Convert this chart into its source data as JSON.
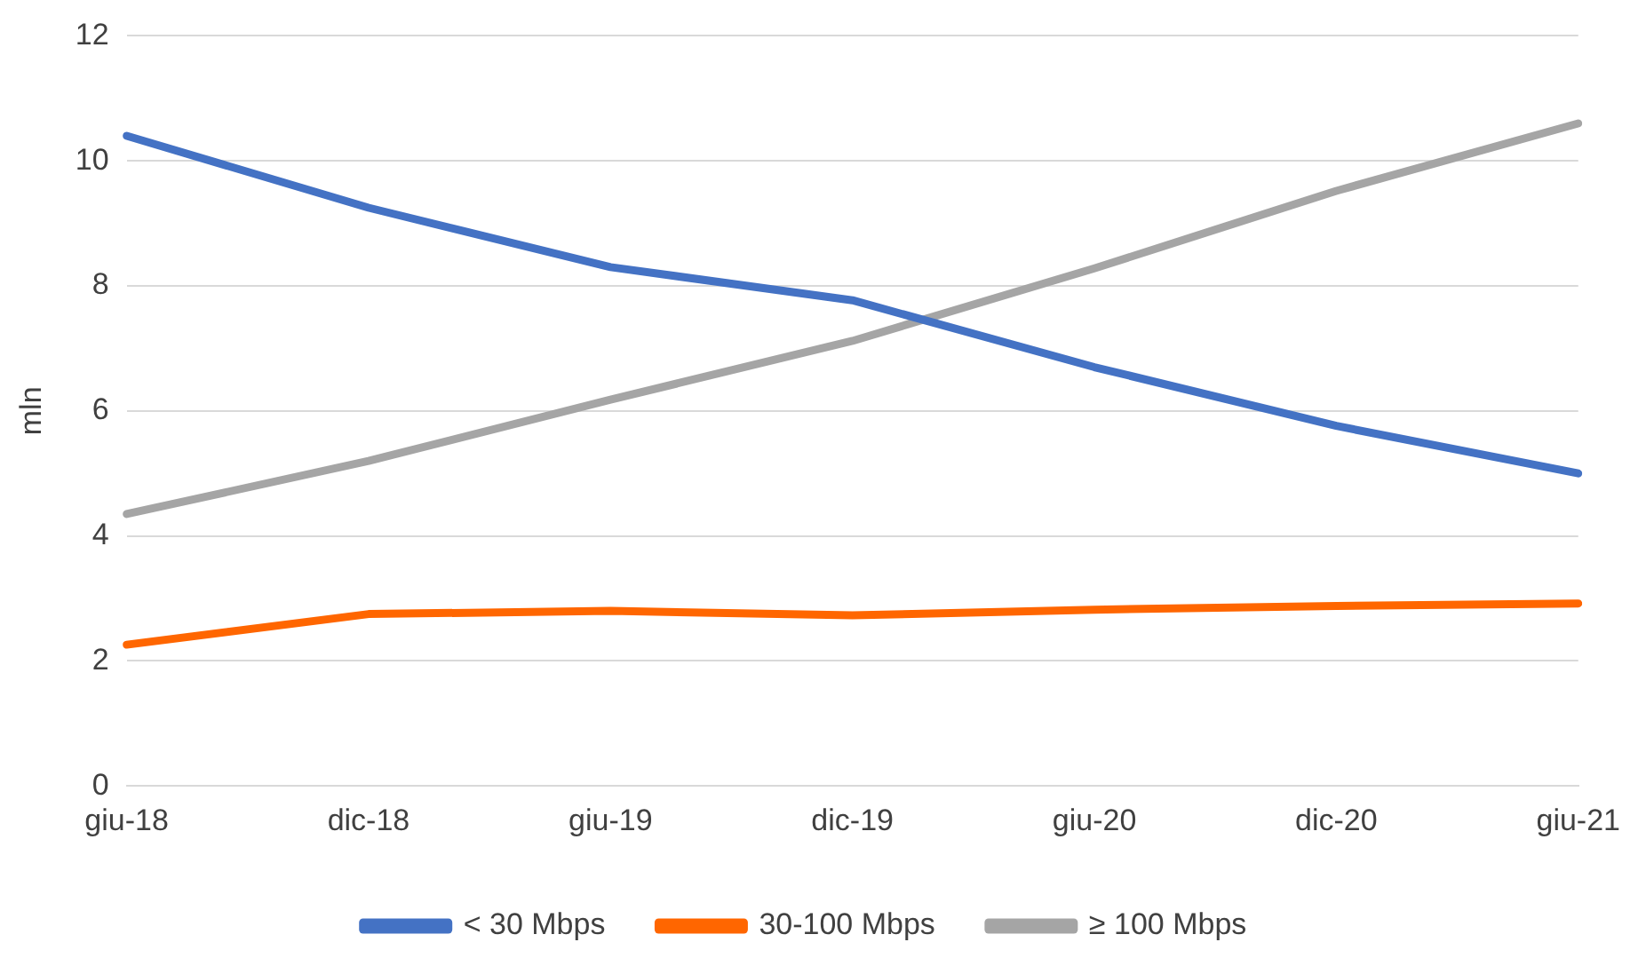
{
  "chart_data": {
    "type": "line",
    "ylabel": "mln",
    "categories": [
      "giu-18",
      "dic-18",
      "giu-19",
      "dic-19",
      "giu-20",
      "dic-20",
      "giu-21"
    ],
    "series": [
      {
        "name": "< 30 Mbps",
        "color": "#4472c4",
        "values": [
          10.4,
          9.25,
          8.3,
          7.77,
          6.7,
          5.76,
          5.0
        ]
      },
      {
        "name": "30-100 Mbps",
        "color": "#ff6600",
        "values": [
          2.26,
          2.75,
          2.8,
          2.73,
          2.82,
          2.88,
          2.92
        ]
      },
      {
        "name": "≥ 100 Mbps",
        "color": "#a5a5a5",
        "values": [
          4.35,
          5.2,
          6.18,
          7.12,
          8.28,
          9.52,
          10.6
        ]
      }
    ],
    "ylim": [
      0,
      12
    ],
    "yticks": [
      0,
      2,
      4,
      6,
      8,
      10,
      12
    ],
    "grid": "y",
    "legend": "bottom",
    "marker": "none",
    "line_style": "solid"
  }
}
